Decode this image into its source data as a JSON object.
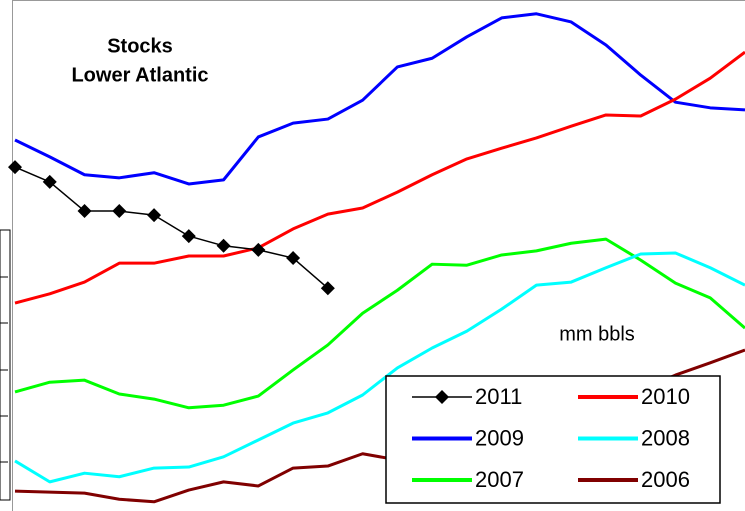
{
  "chart_data": {
    "type": "line",
    "title": [
      "Stocks",
      "Lower Atlantic"
    ],
    "annotation": "mm bbls",
    "categories": [
      null,
      null,
      null,
      null,
      null,
      null,
      null,
      null,
      null,
      null,
      null,
      null,
      null,
      null,
      null,
      null,
      null,
      null,
      null,
      null,
      null,
      null
    ],
    "ylim": [
      0,
      100
    ],
    "series": [
      {
        "name": "2011",
        "color": "#000000",
        "marker": "diamond",
        "values": [
          67.3,
          64.4,
          58.7,
          58.7,
          57.9,
          53.8,
          51.9,
          51.1,
          49.5,
          43.6,
          null,
          null,
          null,
          null,
          null,
          null,
          null,
          null,
          null,
          null,
          null,
          null
        ]
      },
      {
        "name": "2010",
        "color": "#ff0000",
        "values": [
          40.7,
          42.5,
          44.8,
          48.5,
          48.5,
          49.9,
          49.9,
          51.5,
          55.2,
          58.1,
          59.3,
          62.4,
          65.8,
          68.9,
          71.0,
          73.0,
          75.3,
          77.5,
          77.3,
          80.6,
          84.7,
          89.8
        ]
      },
      {
        "name": "2009",
        "color": "#0000ff",
        "values": [
          72.6,
          69.3,
          65.8,
          65.2,
          66.2,
          64.0,
          64.8,
          73.2,
          75.9,
          76.7,
          80.4,
          86.9,
          88.6,
          92.8,
          96.5,
          97.3,
          95.7,
          91.2,
          85.3,
          80.0,
          78.9,
          78.5
        ]
      },
      {
        "name": "2008",
        "color": "#00ffff",
        "values": [
          9.8,
          5.7,
          7.4,
          6.7,
          8.4,
          8.6,
          10.6,
          13.9,
          17.2,
          19.2,
          22.7,
          28.0,
          31.9,
          35.2,
          39.5,
          44.2,
          44.8,
          47.6,
          50.3,
          50.5,
          47.6,
          44.2
        ]
      },
      {
        "name": "2007",
        "color": "#00ff00",
        "values": [
          23.3,
          25.2,
          25.6,
          22.9,
          21.9,
          20.2,
          20.7,
          22.5,
          27.6,
          32.5,
          38.7,
          43.2,
          48.3,
          48.1,
          50.1,
          50.9,
          52.4,
          53.2,
          49.1,
          44.6,
          41.7,
          35.8
        ]
      },
      {
        "name": "2006",
        "color": "#800000",
        "values": [
          3.9,
          3.7,
          3.5,
          2.3,
          1.8,
          4.1,
          5.7,
          4.9,
          8.4,
          8.8,
          11.2,
          10.0,
          11.5,
          13.1,
          14.7,
          16.2,
          17.8,
          20.7,
          23.7,
          26.6,
          29.0,
          31.5
        ]
      }
    ]
  }
}
